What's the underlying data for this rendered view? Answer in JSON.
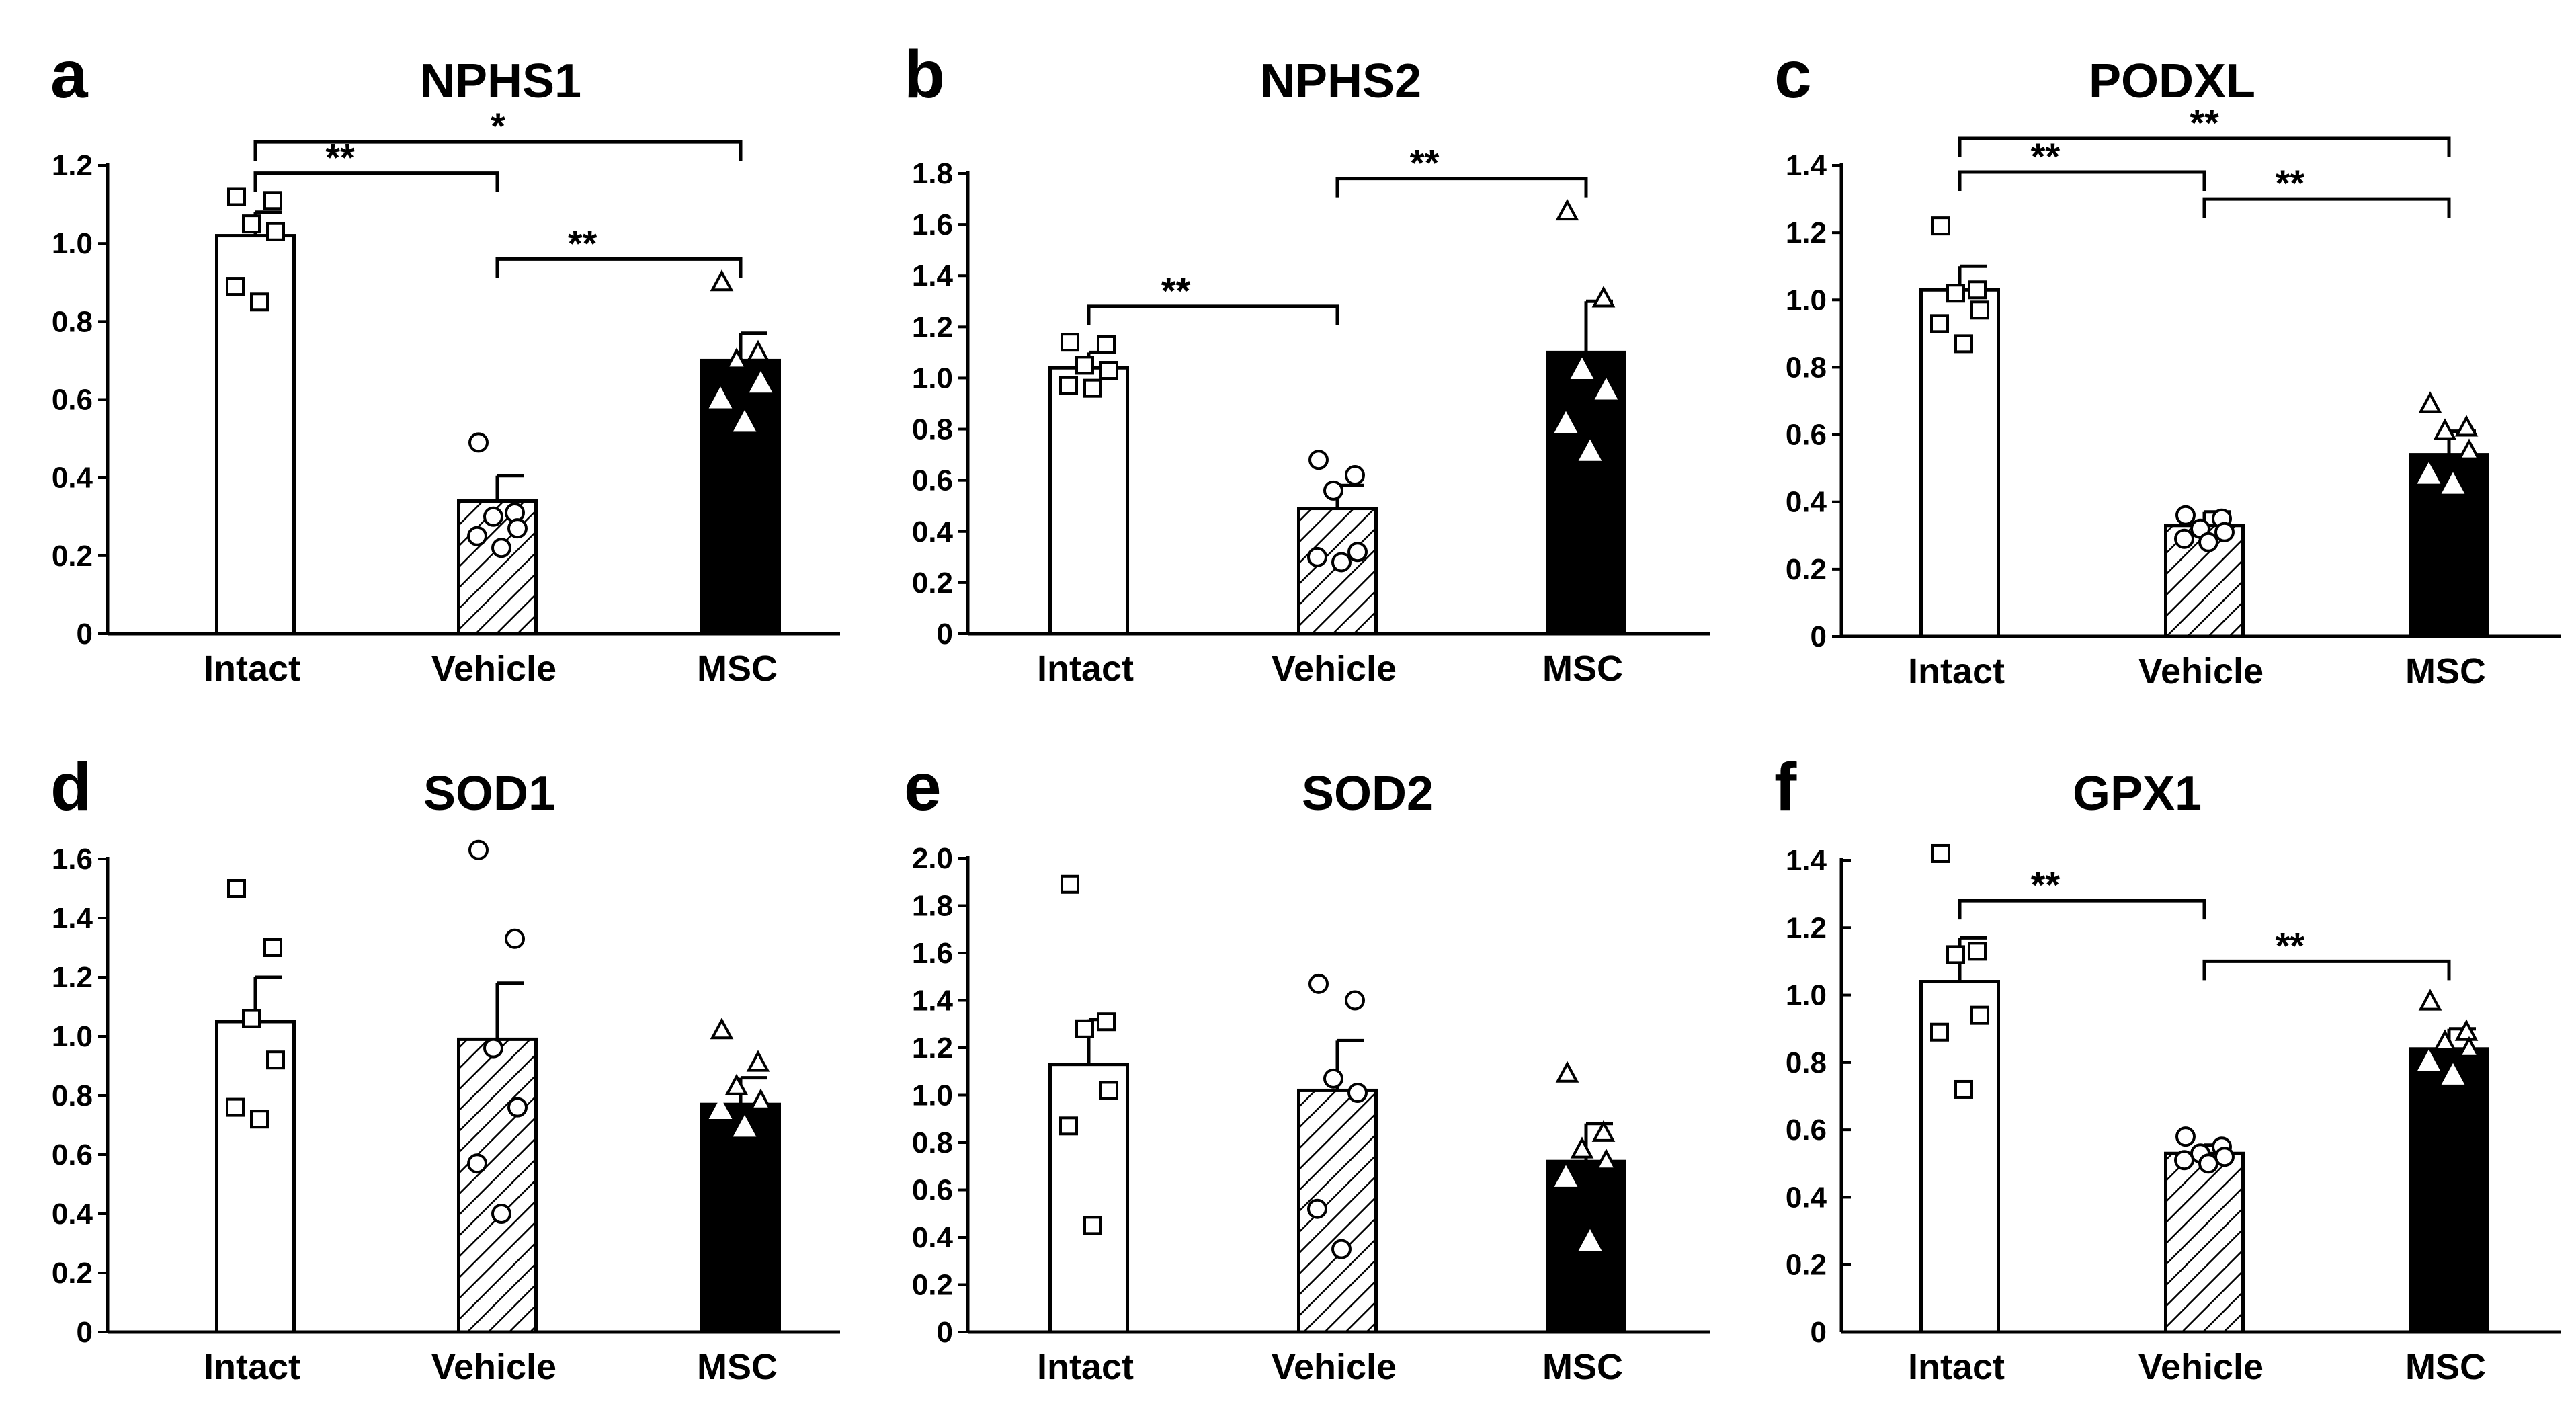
{
  "figure": {
    "groups": [
      "Intact",
      "Vehicle",
      "MSC"
    ],
    "colors": {
      "intact": "#ffffff",
      "vehicle": "hatched",
      "msc": "#000000",
      "axis": "#000000"
    }
  },
  "chart_data": [
    {
      "panel": "a",
      "type": "bar",
      "title": "NPHS1",
      "categories": [
        "Intact",
        "Vehicle",
        "MSC"
      ],
      "ylim": [
        0,
        1.2
      ],
      "yticks": [
        0,
        0.2,
        0.4,
        0.6,
        0.8,
        1.0,
        1.2
      ],
      "ytick_labels": [
        "0",
        "0.2",
        "0.4",
        "0.6",
        "0.8",
        "1.0",
        "1.2"
      ],
      "values": [
        1.02,
        0.34,
        0.7
      ],
      "errors": [
        0.06,
        0.065,
        0.07
      ],
      "points": [
        [
          1.12,
          1.11,
          1.05,
          1.03,
          0.89,
          0.85
        ],
        [
          0.49,
          0.31,
          0.3,
          0.27,
          0.25,
          0.22
        ],
        [
          0.9,
          0.72,
          0.7,
          0.64,
          0.6,
          0.54
        ]
      ],
      "significance": [
        {
          "from": 0,
          "to": 1,
          "label": "**",
          "level": 1.18
        },
        {
          "from": 0,
          "to": 2,
          "label": "*",
          "level": 1.26
        },
        {
          "from": 1,
          "to": 2,
          "label": "**",
          "level": 0.96
        }
      ]
    },
    {
      "panel": "b",
      "type": "bar",
      "title": "NPHS2",
      "categories": [
        "Intact",
        "Vehicle",
        "MSC"
      ],
      "ylim": [
        0,
        1.8
      ],
      "yticks": [
        0,
        0.2,
        0.4,
        0.6,
        0.8,
        1.0,
        1.2,
        1.4,
        1.6,
        1.8
      ],
      "ytick_labels": [
        "0",
        "0.2",
        "0.4",
        "0.6",
        "0.8",
        "1.0",
        "1.2",
        "1.4",
        "1.6",
        "1.8"
      ],
      "values": [
        1.04,
        0.49,
        1.1
      ],
      "errors": [
        0.06,
        0.09,
        0.2
      ],
      "points": [
        [
          1.14,
          1.13,
          1.05,
          1.03,
          0.97,
          0.96
        ],
        [
          0.68,
          0.62,
          0.56,
          0.32,
          0.3,
          0.28
        ],
        [
          1.65,
          1.31,
          1.03,
          0.95,
          0.82,
          0.71
        ]
      ],
      "significance": [
        {
          "from": 0,
          "to": 1,
          "label": "**",
          "level": 1.28
        },
        {
          "from": 1,
          "to": 2,
          "label": "**",
          "level": 1.78
        }
      ]
    },
    {
      "panel": "c",
      "type": "bar",
      "title": "PODXL",
      "categories": [
        "Intact",
        "Vehicle",
        "MSC"
      ],
      "ylim": [
        0,
        1.4
      ],
      "yticks": [
        0,
        0.2,
        0.4,
        0.6,
        0.8,
        1.0,
        1.2,
        1.4
      ],
      "ytick_labels": [
        "0",
        "0.2",
        "0.4",
        "0.6",
        "0.8",
        "1.0",
        "1.2",
        "1.4"
      ],
      "values": [
        1.03,
        0.33,
        0.54
      ],
      "errors": [
        0.07,
        0.04,
        0.07
      ],
      "points": [
        [
          1.22,
          1.03,
          1.02,
          0.97,
          0.93,
          0.87
        ],
        [
          0.36,
          0.35,
          0.32,
          0.31,
          0.29,
          0.28
        ],
        [
          0.69,
          0.62,
          0.61,
          0.55,
          0.48,
          0.45
        ]
      ],
      "significance": [
        {
          "from": 0,
          "to": 1,
          "label": "**",
          "level": 1.38
        },
        {
          "from": 0,
          "to": 2,
          "label": "**",
          "level": 1.48
        },
        {
          "from": 1,
          "to": 2,
          "label": "**",
          "level": 1.3
        }
      ]
    },
    {
      "panel": "d",
      "type": "bar",
      "title": "SOD1",
      "categories": [
        "Intact",
        "Vehicle",
        "MSC"
      ],
      "ylim": [
        0,
        1.6
      ],
      "yticks": [
        0,
        0.2,
        0.4,
        0.6,
        0.8,
        1.0,
        1.2,
        1.4,
        1.6
      ],
      "ytick_labels": [
        "0",
        "0.2",
        "0.4",
        "0.6",
        "0.8",
        "1.0",
        "1.2",
        "1.4",
        "1.6"
      ],
      "values": [
        1.05,
        0.99,
        0.77
      ],
      "errors": [
        0.15,
        0.19,
        0.09
      ],
      "points": [
        [
          1.5,
          1.3,
          1.06,
          0.92,
          0.76,
          0.72
        ],
        [
          1.63,
          1.33,
          0.96,
          0.76,
          0.57,
          0.4
        ],
        [
          1.02,
          0.91,
          0.83,
          0.78,
          0.75,
          0.69
        ]
      ],
      "significance": []
    },
    {
      "panel": "e",
      "type": "bar",
      "title": "SOD2",
      "categories": [
        "Intact",
        "Vehicle",
        "MSC"
      ],
      "ylim": [
        0,
        2.0
      ],
      "yticks": [
        0,
        0.2,
        0.4,
        0.6,
        0.8,
        1.0,
        1.2,
        1.4,
        1.6,
        1.8,
        2.0
      ],
      "ytick_labels": [
        "0",
        "0.2",
        "0.4",
        "0.6",
        "0.8",
        "1.0",
        "1.2",
        "1.4",
        "1.6",
        "1.8",
        "2.0"
      ],
      "values": [
        1.13,
        1.02,
        0.72
      ],
      "errors": [
        0.19,
        0.21,
        0.16
      ],
      "points": [
        [
          1.89,
          1.31,
          1.28,
          1.02,
          0.87,
          0.45
        ],
        [
          1.47,
          1.4,
          1.07,
          1.01,
          0.52,
          0.35
        ],
        [
          1.09,
          0.84,
          0.77,
          0.72,
          0.65,
          0.38
        ]
      ],
      "significance": []
    },
    {
      "panel": "f",
      "type": "bar",
      "title": "GPX1",
      "categories": [
        "Intact",
        "Vehicle",
        "MSC"
      ],
      "ylim": [
        0,
        1.4
      ],
      "yticks": [
        0,
        0.2,
        0.4,
        0.6,
        0.8,
        1.0,
        1.2,
        1.4
      ],
      "ytick_labels": [
        "0",
        "0.2",
        "0.4",
        "0.6",
        "0.8",
        "1.0",
        "1.2",
        "1.4"
      ],
      "values": [
        1.04,
        0.53,
        0.84
      ],
      "errors": [
        0.13,
        0.025,
        0.06
      ],
      "points": [
        [
          1.42,
          1.13,
          1.12,
          0.94,
          0.89,
          0.72
        ],
        [
          0.58,
          0.55,
          0.53,
          0.52,
          0.51,
          0.5
        ],
        [
          0.98,
          0.89,
          0.86,
          0.84,
          0.8,
          0.76
        ]
      ],
      "significance": [
        {
          "from": 0,
          "to": 1,
          "label": "**",
          "level": 1.28
        },
        {
          "from": 1,
          "to": 2,
          "label": "**",
          "level": 1.1
        }
      ]
    }
  ]
}
